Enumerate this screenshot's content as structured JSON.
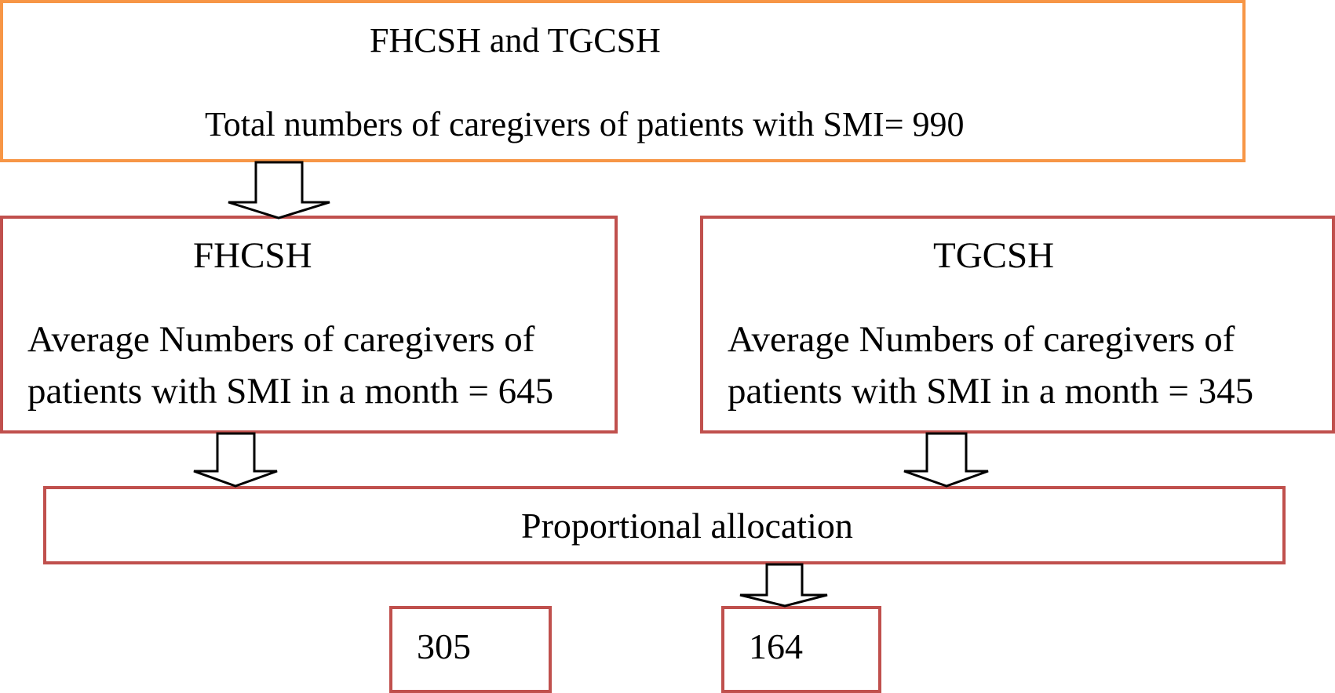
{
  "diagram": {
    "top": {
      "title": "FHCSH and TGCSH",
      "subtitle": "Total numbers of caregivers of patients with SMI= 990"
    },
    "left": {
      "title": "FHCSH",
      "line1": "Average Numbers of caregivers of",
      "line2": "patients with SMI in a month = 645"
    },
    "right": {
      "title": "TGCSH",
      "line1": "Average Numbers of caregivers of",
      "line2": "patients with SMI in a month = 345"
    },
    "allocation": {
      "label": "Proportional allocation"
    },
    "results": {
      "left_value": "305",
      "right_value": "164"
    }
  },
  "colors": {
    "top_border": "#f79646",
    "box_border": "#c0504d",
    "arrow": "#000000"
  }
}
